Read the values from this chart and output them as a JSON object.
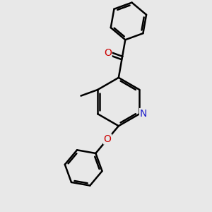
{
  "background_color": "#e8e8e8",
  "bond_color": "#000000",
  "bond_width": 1.8,
  "atom_colors": {
    "N": "#2020cc",
    "O": "#cc0000",
    "C": "#000000"
  },
  "font_size_atom": 10,
  "figsize": [
    3.0,
    3.0
  ],
  "dpi": 100,
  "xlim": [
    0,
    10
  ],
  "ylim": [
    0,
    10
  ]
}
